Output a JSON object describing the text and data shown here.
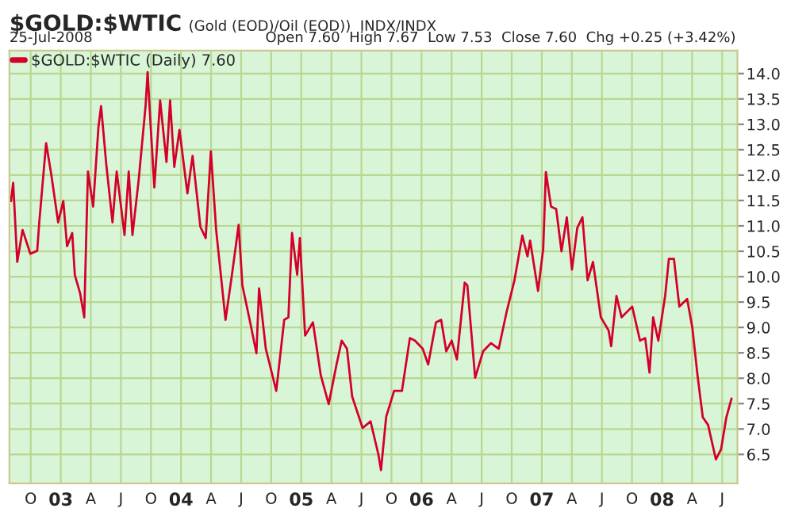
{
  "chart_data": {
    "type": "line",
    "title": "$GOLD:$WTIC",
    "subtitle": "(Gold (EOD)/Oil (EOD))  INDX/INDX",
    "annotations": [
      "25-Jul-2008",
      "Open 7.60  High 7.67  Low 7.53  Close 7.60  Chg +0.25 (+3.42%)"
    ],
    "x": [
      2002.586,
      2002.604,
      2002.638,
      2002.682,
      2002.747,
      2002.804,
      2002.821,
      2002.878,
      2002.921,
      2002.978,
      2003.021,
      2003.052,
      2003.095,
      2003.117,
      2003.161,
      2003.195,
      2003.213,
      2003.226,
      2003.269,
      2003.313,
      2003.335,
      2003.378,
      2003.43,
      2003.465,
      2003.53,
      2003.565,
      2003.596,
      2003.648,
      2003.705,
      2003.722,
      2003.748,
      2003.778,
      2003.826,
      2003.879,
      2003.909,
      2003.944,
      2003.987,
      2004.053,
      2004.096,
      2004.161,
      2004.205,
      2004.248,
      2004.292,
      2004.37,
      2004.423,
      2004.479,
      2004.51,
      2004.575,
      2004.627,
      2004.649,
      2004.705,
      2004.792,
      2004.858,
      2004.893,
      2004.923,
      2004.966,
      2004.988,
      2005.032,
      2005.097,
      2005.162,
      2005.228,
      2005.293,
      2005.336,
      2005.38,
      2005.423,
      2005.51,
      2005.576,
      2005.641,
      2005.663,
      2005.706,
      2005.772,
      2005.837,
      2005.903,
      2005.945,
      2006.01,
      2006.055,
      2006.12,
      2006.163,
      2006.206,
      2006.251,
      2006.294,
      2006.359,
      2006.381,
      2006.446,
      2006.512,
      2006.577,
      2006.642,
      2006.708,
      2006.773,
      2006.838,
      2006.881,
      2006.903,
      2006.969,
      2007.012,
      2007.034,
      2007.077,
      2007.12,
      2007.164,
      2007.208,
      2007.251,
      2007.295,
      2007.338,
      2007.381,
      2007.426,
      2007.491,
      2007.556,
      2007.577,
      2007.621,
      2007.664,
      2007.752,
      2007.817,
      2007.86,
      2007.896,
      2007.926,
      2007.969,
      2008.026,
      2008.057,
      2008.099,
      2008.144,
      2008.209,
      2008.252,
      2008.295,
      2008.339,
      2008.383,
      2008.448,
      2008.491,
      2008.535,
      2008.578
    ],
    "series": [
      {
        "name": "$GOLD:$WTIC (Daily) 7.60",
        "color": "#d4002a",
        "values": [
          11.49,
          11.85,
          10.29,
          10.92,
          10.45,
          10.51,
          11.07,
          12.63,
          12.01,
          11.07,
          11.49,
          10.6,
          10.86,
          10.03,
          9.67,
          9.2,
          10.92,
          12.07,
          11.38,
          12.94,
          13.36,
          12.22,
          11.07,
          12.07,
          10.82,
          12.07,
          10.82,
          11.91,
          13.36,
          14.03,
          12.94,
          11.76,
          13.47,
          12.26,
          13.47,
          12.16,
          12.89,
          11.64,
          12.38,
          10.98,
          10.76,
          12.47,
          10.92,
          9.15,
          10.03,
          11.02,
          9.83,
          9.1,
          8.49,
          9.77,
          8.58,
          7.75,
          9.15,
          9.2,
          10.86,
          10.04,
          10.76,
          8.84,
          9.1,
          8.06,
          7.49,
          8.27,
          8.74,
          8.58,
          7.64,
          7.02,
          7.15,
          6.5,
          6.19,
          7.24,
          7.75,
          7.75,
          8.79,
          8.74,
          8.58,
          8.27,
          9.1,
          9.15,
          8.53,
          8.74,
          8.37,
          9.88,
          9.83,
          8.01,
          8.53,
          8.69,
          8.58,
          9.31,
          9.93,
          10.81,
          10.4,
          10.71,
          9.72,
          10.55,
          12.06,
          11.38,
          11.33,
          10.5,
          11.17,
          10.14,
          10.96,
          11.17,
          9.93,
          10.29,
          9.2,
          8.94,
          8.63,
          9.62,
          9.2,
          9.41,
          8.74,
          8.79,
          8.11,
          9.2,
          8.74,
          9.62,
          10.35,
          10.35,
          9.41,
          9.56,
          9.0,
          8.06,
          7.23,
          7.08,
          6.4,
          6.6,
          7.23,
          7.6
        ]
      }
    ],
    "xlim": [
      2002.573,
      2008.627
    ],
    "ylim": [
      5.93,
      14.45
    ],
    "xticks": [
      {
        "value": 2002.75,
        "label": "O"
      },
      {
        "value": 2003,
        "label": "03"
      },
      {
        "value": 2003.25,
        "label": "A"
      },
      {
        "value": 2003.5,
        "label": "J"
      },
      {
        "value": 2003.75,
        "label": "O"
      },
      {
        "value": 2004,
        "label": "04"
      },
      {
        "value": 2004.25,
        "label": "A"
      },
      {
        "value": 2004.5,
        "label": "J"
      },
      {
        "value": 2004.75,
        "label": "O"
      },
      {
        "value": 2005,
        "label": "05"
      },
      {
        "value": 2005.25,
        "label": "A"
      },
      {
        "value": 2005.5,
        "label": "J"
      },
      {
        "value": 2005.75,
        "label": "O"
      },
      {
        "value": 2006,
        "label": "06"
      },
      {
        "value": 2006.25,
        "label": "A"
      },
      {
        "value": 2006.5,
        "label": "J"
      },
      {
        "value": 2006.75,
        "label": "O"
      },
      {
        "value": 2007,
        "label": "07"
      },
      {
        "value": 2007.25,
        "label": "A"
      },
      {
        "value": 2007.5,
        "label": "J"
      },
      {
        "value": 2007.75,
        "label": "O"
      },
      {
        "value": 2008,
        "label": "08"
      },
      {
        "value": 2008.25,
        "label": "A"
      },
      {
        "value": 2008.5,
        "label": "J"
      }
    ],
    "yticks": [
      {
        "value": 6.5,
        "label": "6.5"
      },
      {
        "value": 7,
        "label": "7.0"
      },
      {
        "value": 7.5,
        "label": "7.5"
      },
      {
        "value": 8,
        "label": "8.0"
      },
      {
        "value": 8.5,
        "label": "8.5"
      },
      {
        "value": 9,
        "label": "9.0"
      },
      {
        "value": 9.5,
        "label": "9.5"
      },
      {
        "value": 10,
        "label": "10.0"
      },
      {
        "value": 10.5,
        "label": "10.5"
      },
      {
        "value": 11,
        "label": "11.0"
      },
      {
        "value": 11.5,
        "label": "11.5"
      },
      {
        "value": 12,
        "label": "12.0"
      },
      {
        "value": 12.5,
        "label": "12.5"
      },
      {
        "value": 13,
        "label": "13.0"
      },
      {
        "value": 13.5,
        "label": "13.5"
      },
      {
        "value": 14,
        "label": "14.0"
      }
    ],
    "grid": true,
    "legend": "top left",
    "marker": "none",
    "line_style": "solid"
  }
}
